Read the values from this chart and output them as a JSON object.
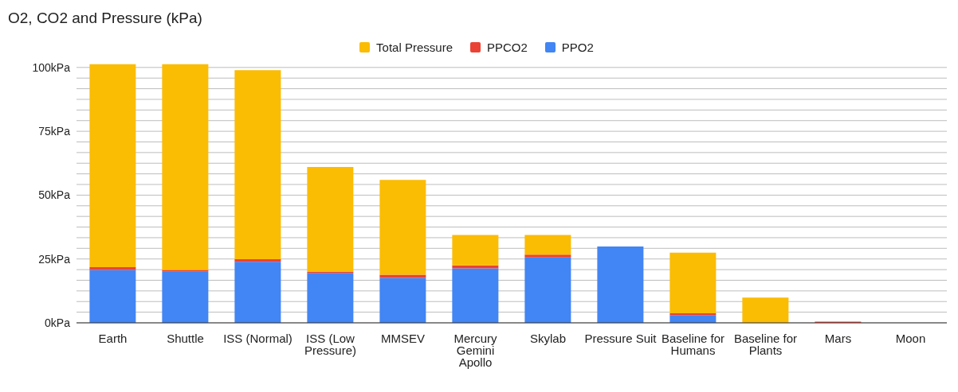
{
  "chart_data": {
    "type": "bar",
    "title": "O2, CO2  and Pressure (kPa)",
    "stacked": true,
    "legend": "top",
    "grid": "y",
    "categories": [
      "Earth",
      "Shuttle",
      "ISS (Normal)",
      "ISS (Low Pressure)",
      "MMSEV",
      "Mercury Gemini Apollo",
      "Skylab",
      "Pressure Suit",
      "Baseline for Humans",
      "Baseline for Plants",
      "Mars",
      "Moon"
    ],
    "series": [
      {
        "name": "PPO2",
        "color": "#4285f4",
        "values": [
          20.7,
          20,
          23.9,
          19.5,
          17.6,
          21.3,
          25.6,
          29.9,
          3,
          0,
          0,
          0
        ]
      },
      {
        "name": "PPCO2",
        "color": "#ea4335",
        "values": [
          1.1,
          0.7,
          1,
          0.4,
          1.2,
          1.2,
          1.1,
          0,
          0.7,
          0,
          0.5,
          0
        ]
      },
      {
        "name": "Total Pressure",
        "color": "#fbbc04",
        "values": [
          79.5,
          80.6,
          74,
          41.1,
          37.2,
          11.9,
          7.7,
          0,
          23.8,
          9.9,
          0,
          0
        ]
      }
    ],
    "ylim": [
      0,
      101.5
    ],
    "yticks": [
      {
        "value": 0,
        "label": "0kPa"
      },
      {
        "value": 4.17,
        "label": null
      },
      {
        "value": 8.33,
        "label": null
      },
      {
        "value": 12.5,
        "label": null
      },
      {
        "value": 16.67,
        "label": null
      },
      {
        "value": 20.83,
        "label": null
      },
      {
        "value": 25,
        "label": "25kPa"
      },
      {
        "value": 29.17,
        "label": null
      },
      {
        "value": 33.33,
        "label": null
      },
      {
        "value": 37.5,
        "label": null
      },
      {
        "value": 41.67,
        "label": null
      },
      {
        "value": 45.83,
        "label": null
      },
      {
        "value": 50,
        "label": "50kPa"
      },
      {
        "value": 54.17,
        "label": null
      },
      {
        "value": 58.33,
        "label": null
      },
      {
        "value": 62.5,
        "label": null
      },
      {
        "value": 66.67,
        "label": null
      },
      {
        "value": 70.83,
        "label": null
      },
      {
        "value": 75,
        "label": "75kPa"
      },
      {
        "value": 79.17,
        "label": null
      },
      {
        "value": 83.33,
        "label": null
      },
      {
        "value": 87.5,
        "label": null
      },
      {
        "value": 91.67,
        "label": null
      },
      {
        "value": 95.83,
        "label": null
      },
      {
        "value": 100,
        "label": "100kPa"
      }
    ]
  }
}
